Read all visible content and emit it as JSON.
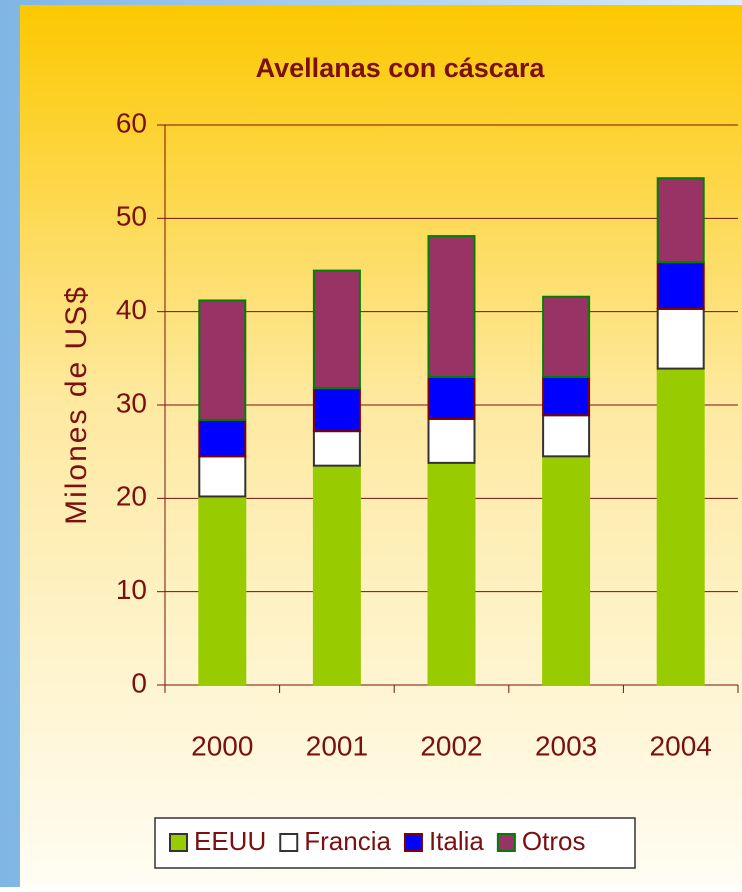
{
  "chart_data": {
    "type": "stacked_bar",
    "title": "Avellanas con cáscara",
    "y_label": "Milones de US$",
    "categories": [
      "2000",
      "2001",
      "2002",
      "2003",
      "2004"
    ],
    "series": [
      {
        "name": "EEUU",
        "color": "#99cc00",
        "edgecolor": "#99cc00",
        "values": [
          20.2,
          23.5,
          23.8,
          24.5,
          33.9
        ]
      },
      {
        "name": "Francia",
        "color": "#ffffff",
        "edgecolor": "#333333",
        "values": [
          4.3,
          3.7,
          4.7,
          4.4,
          6.4
        ]
      },
      {
        "name": "Italia",
        "color": "#0000ff",
        "edgecolor": "#800000",
        "values": [
          3.9,
          4.6,
          4.5,
          4.1,
          5.0
        ]
      },
      {
        "name": "Otros",
        "color": "#993366",
        "edgecolor": "#008000",
        "values": [
          12.8,
          12.6,
          15.1,
          8.6,
          9.0
        ]
      }
    ],
    "ylim": [
      0,
      60
    ],
    "yticks": [
      0,
      10,
      20,
      30,
      40,
      50,
      60
    ],
    "grid": true,
    "legend": "bottom"
  }
}
